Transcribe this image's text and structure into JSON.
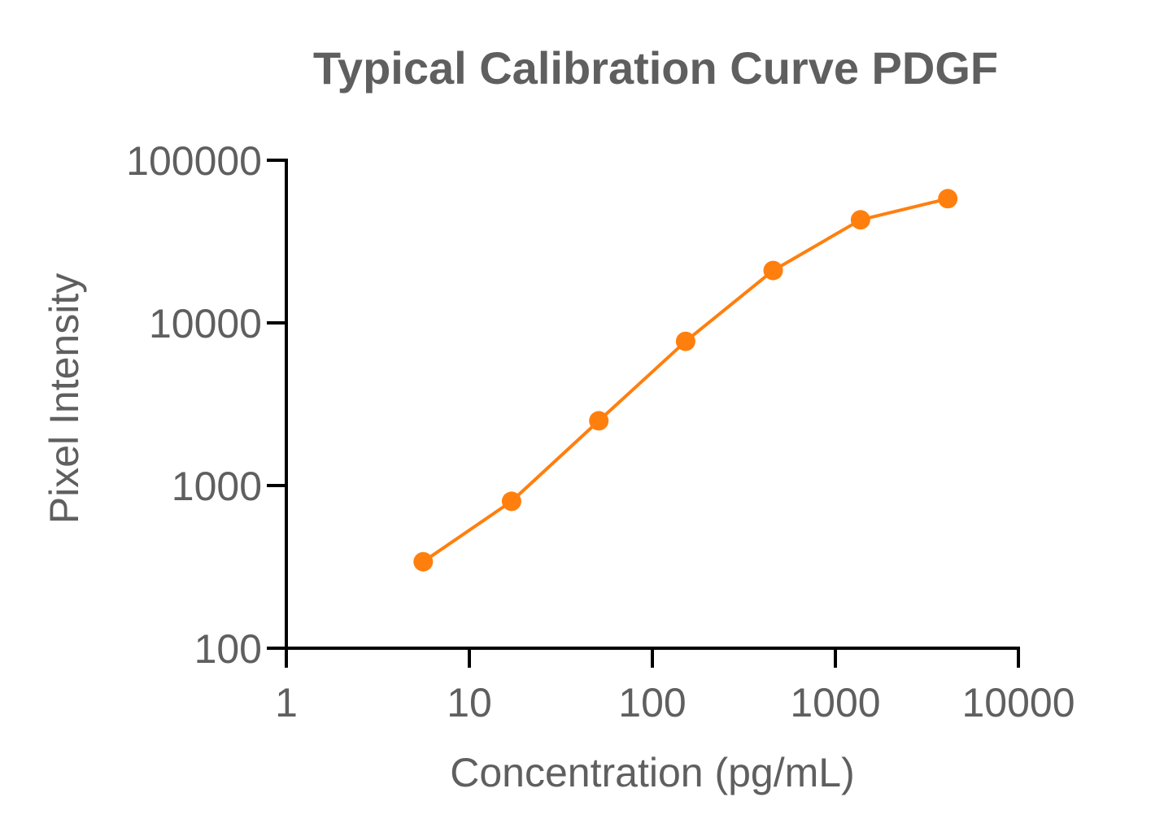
{
  "chart_data": {
    "type": "line",
    "title": "Typical Calibration Curve PDGF",
    "xlabel": "Concentration (pg/mL)",
    "ylabel": "Pixel Intensity",
    "xscale": "log",
    "yscale": "log",
    "xlim": [
      1,
      10000
    ],
    "ylim": [
      100,
      100000
    ],
    "xticks": [
      1,
      10,
      100,
      1000,
      10000
    ],
    "xtick_labels": [
      "1",
      "10",
      "100",
      "1000",
      "10000"
    ],
    "yticks": [
      100,
      1000,
      10000,
      100000
    ],
    "ytick_labels": [
      "100",
      "1000",
      "10000",
      "100000"
    ],
    "grid": false,
    "series": [
      {
        "color": "#FF7F0E",
        "x": [
          5.6,
          17,
          51,
          152,
          457,
          1372,
          4115
        ],
        "y": [
          340,
          800,
          2500,
          7700,
          21000,
          43000,
          58000
        ]
      }
    ]
  },
  "colors": {
    "title": "#5F5F5F",
    "text": "#5F5F5F",
    "axis": "#000000",
    "series": "#FF7F0E"
  }
}
